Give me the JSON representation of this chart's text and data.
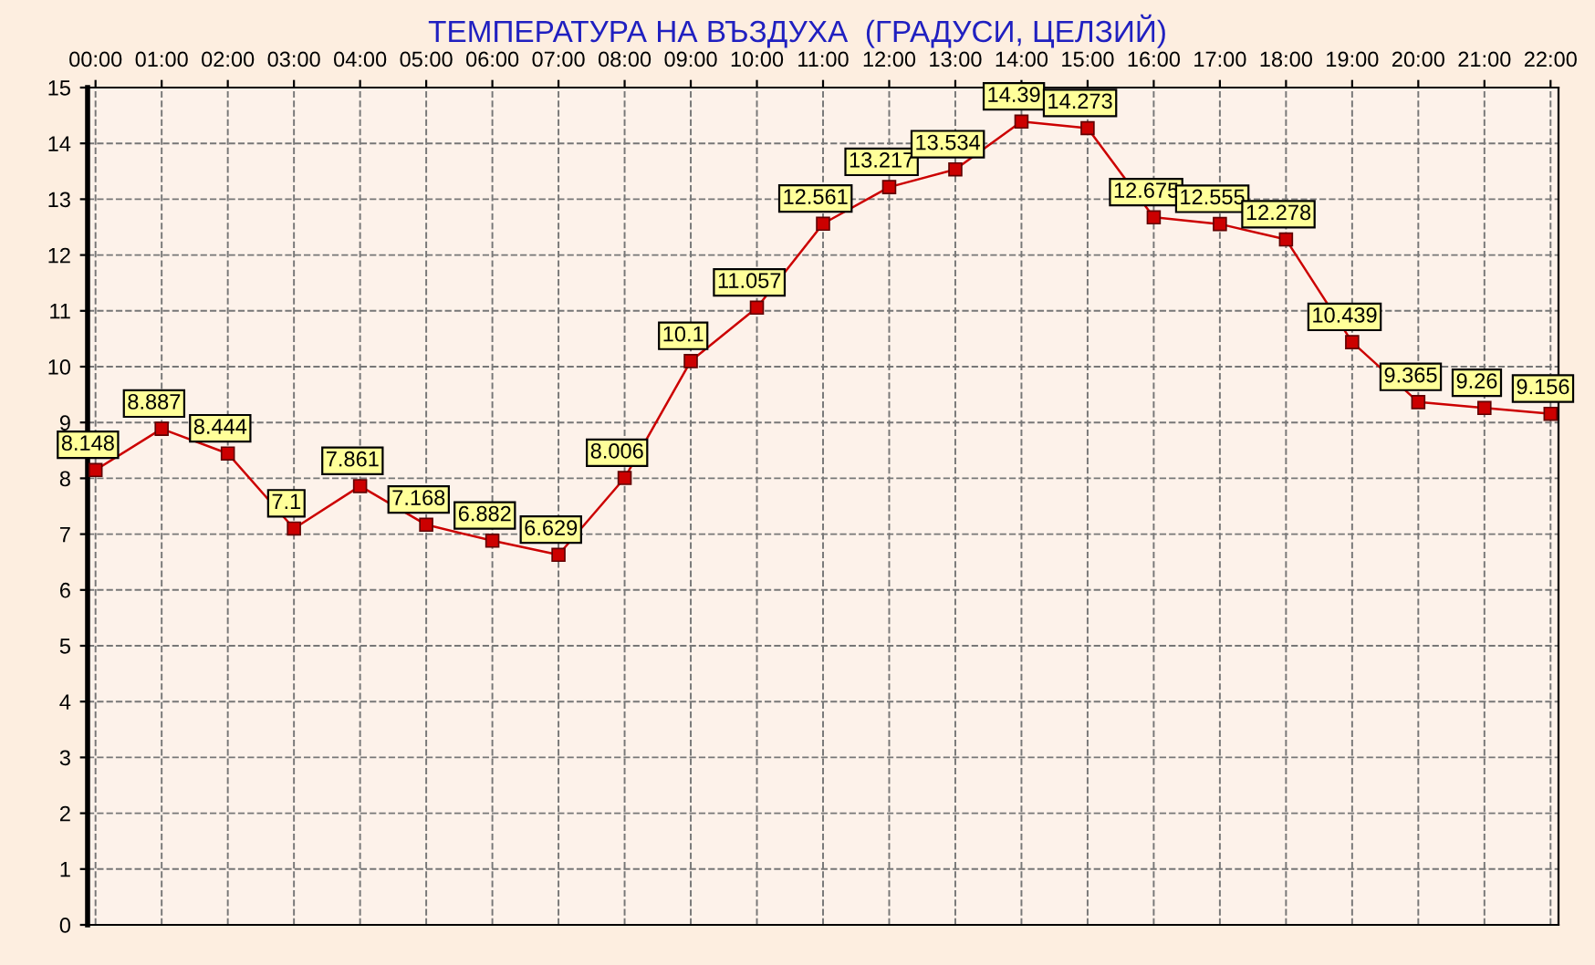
{
  "chart_data": {
    "type": "line",
    "title": "ТЕМПЕРАТУРА НА ВЪЗДУХА  (ГРАДУСИ, ЦЕЛЗИЙ)",
    "categories": [
      "00:00",
      "01:00",
      "02:00",
      "03:00",
      "04:00",
      "05:00",
      "06:00",
      "07:00",
      "08:00",
      "09:00",
      "10:00",
      "11:00",
      "12:00",
      "13:00",
      "14:00",
      "15:00",
      "16:00",
      "17:00",
      "18:00",
      "19:00",
      "20:00",
      "21:00",
      "22:00"
    ],
    "series": [
      {
        "color": "#cc0000",
        "values": [
          8.148,
          8.887,
          8.444,
          7.1,
          7.861,
          7.168,
          6.882,
          6.629,
          8.006,
          10.1,
          11.057,
          12.561,
          13.217,
          13.534,
          14.39,
          14.273,
          12.675,
          12.555,
          12.278,
          10.439,
          9.365,
          9.26,
          9.156
        ]
      }
    ],
    "ylim": [
      0,
      15
    ],
    "yticks": [
      0,
      1,
      2,
      3,
      4,
      5,
      6,
      7,
      8,
      9,
      10,
      11,
      12,
      13,
      14,
      15
    ],
    "grid": true,
    "marker": "square",
    "line_style": "solid",
    "data_labels": true
  }
}
